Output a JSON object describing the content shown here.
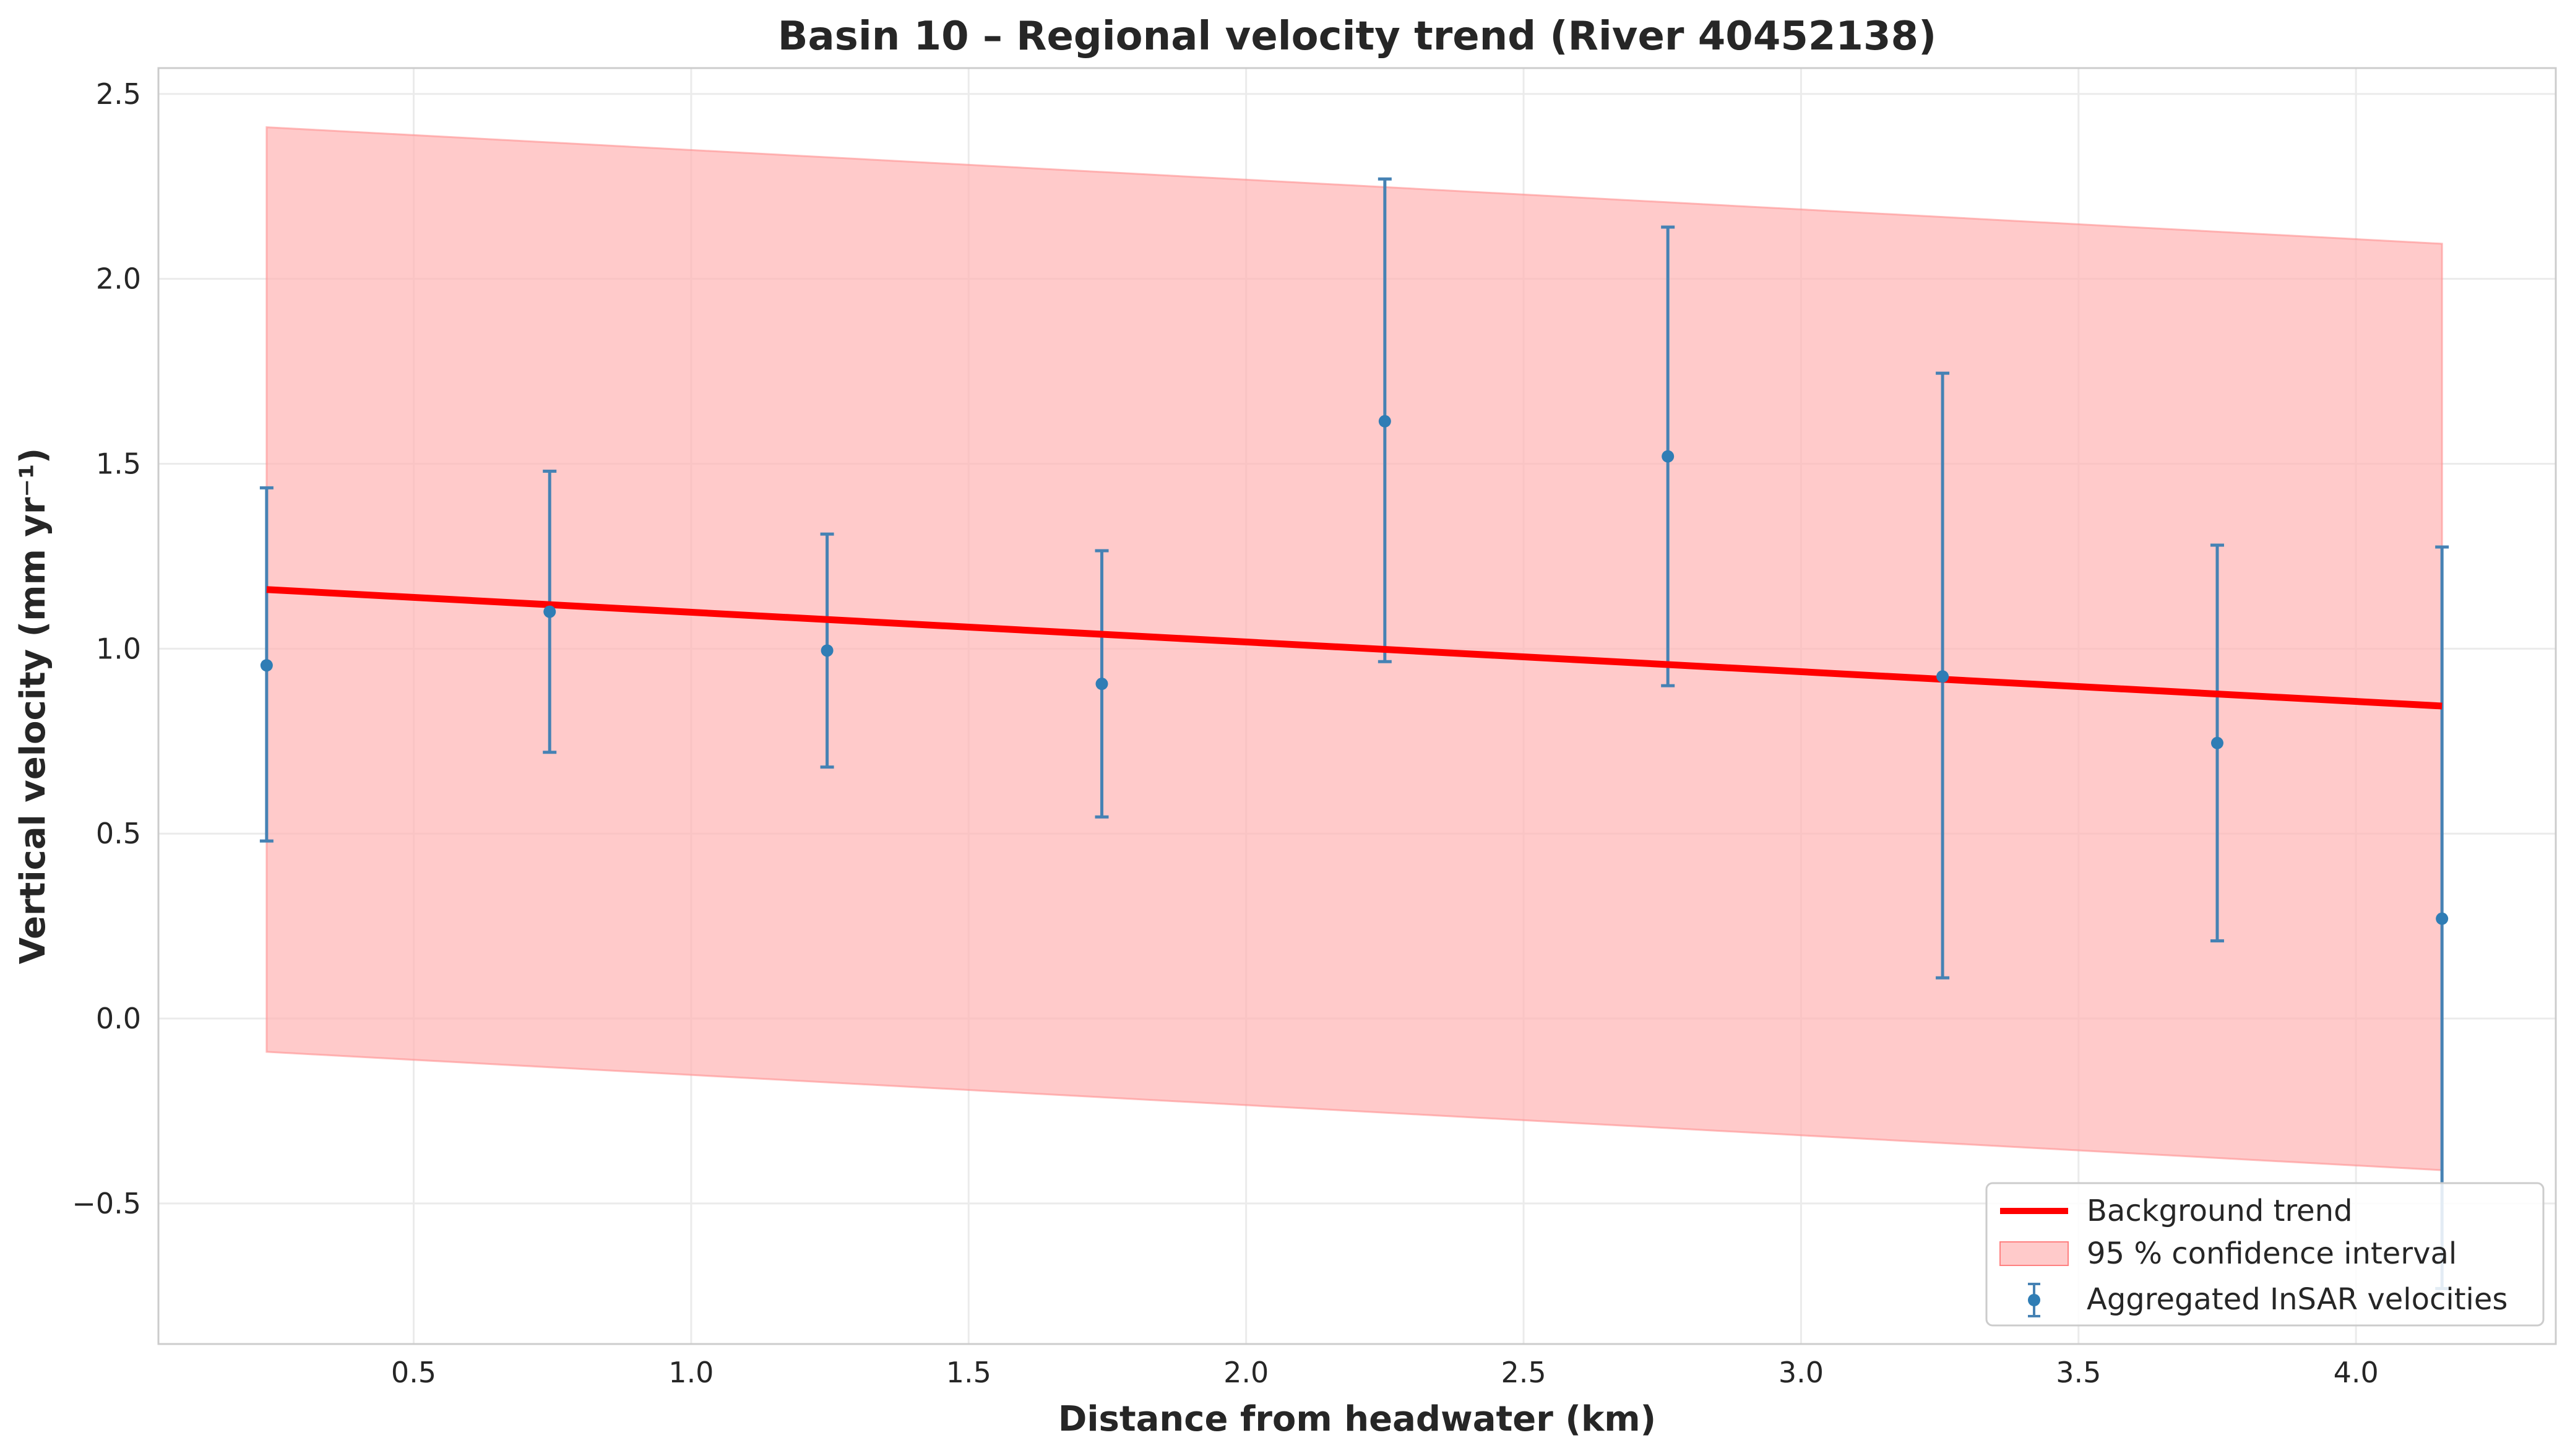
{
  "chart_data": {
    "type": "line",
    "title": "Basin 10 – Regional velocity trend (River 40452138)",
    "xlabel": "Distance from headwater (km)",
    "ylabel": "Vertical velocity (mm yr⁻¹)",
    "xlim": [
      0.04,
      4.36
    ],
    "ylim": [
      -0.88,
      2.57
    ],
    "xticks": [
      0.5,
      1.0,
      1.5,
      2.0,
      2.5,
      3.0,
      3.5,
      4.0
    ],
    "xtick_labels": [
      "0.5",
      "1.0",
      "1.5",
      "2.0",
      "2.5",
      "3.0",
      "3.5",
      "4.0"
    ],
    "yticks": [
      -0.5,
      0.0,
      0.5,
      1.0,
      1.5,
      2.0,
      2.5
    ],
    "ytick_labels": [
      "−0.5",
      "0.0",
      "0.5",
      "1.0",
      "1.5",
      "2.0",
      "2.5"
    ],
    "grid": true,
    "legend_position": "bottom-right",
    "trend": {
      "name": "Background trend",
      "color": "#ff0000",
      "x": [
        0.235,
        4.155
      ],
      "y": [
        1.16,
        0.845
      ]
    },
    "confidence_band": {
      "name": "95 % confidence interval",
      "color": "#ffb3b3",
      "x": [
        0.235,
        4.155
      ],
      "upper": [
        2.41,
        2.095
      ],
      "lower": [
        -0.09,
        -0.41
      ]
    },
    "series": [
      {
        "name": "Aggregated InSAR velocities",
        "color": "#2f7db5",
        "x": [
          0.235,
          0.745,
          1.245,
          1.74,
          2.25,
          2.76,
          3.255,
          3.75,
          4.155
        ],
        "y": [
          0.955,
          1.1,
          0.995,
          0.905,
          1.615,
          1.52,
          0.925,
          0.745,
          0.27
        ],
        "yerr_low": [
          0.48,
          0.72,
          0.68,
          0.545,
          0.965,
          0.9,
          0.11,
          0.21,
          -0.73
        ],
        "yerr_high": [
          1.435,
          1.48,
          1.31,
          1.265,
          2.27,
          2.14,
          1.745,
          1.28,
          1.275
        ]
      }
    ]
  }
}
